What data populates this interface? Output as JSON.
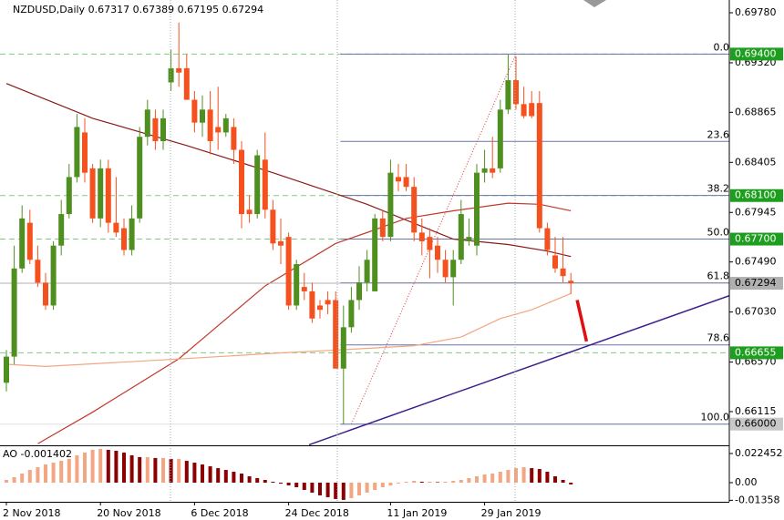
{
  "chart_data": {
    "type": "candlestick",
    "symbol": "NZDUSD,Daily",
    "categories": [
      "2 Nov 2018",
      null,
      null,
      null,
      null,
      null,
      null,
      null,
      null,
      null,
      null,
      null,
      "20 Nov 2018",
      null,
      null,
      null,
      null,
      null,
      null,
      null,
      null,
      null,
      null,
      null,
      "6 Dec 2018",
      null,
      null,
      null,
      null,
      null,
      null,
      null,
      null,
      null,
      null,
      null,
      "24 Dec 2018",
      null,
      null,
      null,
      null,
      null,
      null,
      null,
      null,
      null,
      null,
      null,
      null,
      "11 Jan 2019",
      null,
      null,
      null,
      null,
      null,
      null,
      null,
      null,
      null,
      null,
      null,
      "29 Jan 2019",
      null,
      null,
      null,
      null,
      null,
      null,
      null,
      null,
      null,
      null,
      null
    ],
    "open": [
      0.6638,
      0.6662,
      0.6743,
      0.6785,
      0.6751,
      0.673,
      0.6709,
      0.6764,
      0.6793,
      0.6827,
      0.6868,
      0.6835,
      0.6789,
      0.6835,
      0.6785,
      0.678,
      0.676,
      0.6789,
      0.6864,
      0.6881,
      0.686,
      0.6914,
      0.6927,
      0.6927,
      0.6898,
      0.6877,
      0.6889,
      0.6873,
      0.6868,
      0.6873,
      0.6852,
      0.6797,
      0.6793,
      0.6843,
      0.6797,
      0.6768,
      0.6772,
      0.6709,
      0.6726,
      0.6722,
      0.6709,
      0.6714,
      0.6714,
      0.6651,
      0.6689,
      0.6714,
      0.673,
      0.6722,
      0.6789,
      0.6772,
      0.6827,
      0.6827,
      0.6818,
      0.6776,
      0.6772,
      0.6764,
      0.6751,
      0.6735,
      0.6751,
      0.6768,
      0.6764,
      0.6831,
      0.6835,
      0.6835,
      0.6889,
      0.6916,
      0.6894,
      0.6895,
      0.6895,
      0.678,
      0.6755,
      0.6743,
      0.67317
    ],
    "high": [
      0.6668,
      0.6764,
      0.6801,
      0.6797,
      0.6764,
      0.6739,
      0.6768,
      0.6806,
      0.6839,
      0.6885,
      0.6881,
      0.6839,
      0.6843,
      0.6843,
      0.6827,
      0.6789,
      0.6801,
      0.6873,
      0.6898,
      0.6889,
      0.6889,
      0.6944,
      0.6969,
      0.694,
      0.6906,
      0.6902,
      0.6906,
      0.691,
      0.6885,
      0.6881,
      0.686,
      0.681,
      0.6852,
      0.6868,
      0.6806,
      0.6789,
      0.6776,
      0.6751,
      0.6739,
      0.673,
      0.6714,
      0.6722,
      0.6722,
      0.6709,
      0.6726,
      0.6745,
      0.676,
      0.6793,
      0.6797,
      0.6843,
      0.6839,
      0.6839,
      0.6827,
      0.6789,
      0.678,
      0.6772,
      0.676,
      0.676,
      0.6806,
      0.6789,
      0.6839,
      0.6852,
      0.6864,
      0.6898,
      0.694,
      0.6938,
      0.691,
      0.6906,
      0.6906,
      0.6785,
      0.6772,
      0.6772,
      0.67389
    ],
    "low": [
      0.663,
      0.6655,
      0.6739,
      0.6747,
      0.6726,
      0.6705,
      0.6705,
      0.6755,
      0.6789,
      0.6822,
      0.6822,
      0.6785,
      0.6781,
      0.6776,
      0.6772,
      0.6755,
      0.6755,
      0.6785,
      0.6856,
      0.6852,
      0.6852,
      0.6906,
      0.691,
      0.6898,
      0.6868,
      0.6864,
      0.6848,
      0.6852,
      0.6864,
      0.6839,
      0.678,
      0.6785,
      0.6789,
      0.6789,
      0.676,
      0.6747,
      0.6705,
      0.6705,
      0.6714,
      0.6693,
      0.6697,
      0.6701,
      0.6651,
      0.66,
      0.6684,
      0.6705,
      0.6722,
      0.6722,
      0.6768,
      0.6768,
      0.6814,
      0.6814,
      0.6768,
      0.6755,
      0.6734,
      0.6739,
      0.673,
      0.6709,
      0.6747,
      0.6764,
      0.6755,
      0.6822,
      0.6826,
      0.6831,
      0.6885,
      0.6889,
      0.6881,
      0.6881,
      0.6776,
      0.6755,
      0.6739,
      0.673,
      0.67195
    ],
    "close": [
      0.6662,
      0.6743,
      0.6789,
      0.6751,
      0.673,
      0.6709,
      0.6764,
      0.6793,
      0.6827,
      0.6873,
      0.6831,
      0.6789,
      0.6835,
      0.6785,
      0.6776,
      0.676,
      0.6789,
      0.6864,
      0.6889,
      0.686,
      0.6881,
      0.6927,
      0.6923,
      0.6898,
      0.6877,
      0.6889,
      0.686,
      0.6868,
      0.6881,
      0.6852,
      0.6793,
      0.6793,
      0.6847,
      0.6797,
      0.6766,
      0.6764,
      0.6709,
      0.6747,
      0.6722,
      0.6697,
      0.6705,
      0.671,
      0.6651,
      0.6689,
      0.6714,
      0.673,
      0.6751,
      0.6789,
      0.6772,
      0.6831,
      0.6823,
      0.6818,
      0.6776,
      0.6768,
      0.676,
      0.6751,
      0.6735,
      0.6751,
      0.6793,
      0.6772,
      0.6831,
      0.6835,
      0.6831,
      0.6889,
      0.6916,
      0.6894,
      0.6883,
      0.6883,
      0.678,
      0.676,
      0.6743,
      0.6736,
      0.67294
    ],
    "up_color": "#4f8f1f",
    "down_color": "#f4511e",
    "ylim": [
      0.65805,
      0.69897
    ],
    "yticks": [
      {
        "value": 0.6978,
        "label": "0.69780"
      },
      {
        "value": 0.6932,
        "label": "0.69320"
      },
      0.68865,
      0.68405,
      0.67945,
      {
        "value": 0.6749,
        "label": "0.67490"
      },
      {
        "value": 0.6703,
        "label": "0.67030"
      },
      {
        "value": 0.6657,
        "label": "0.66570"
      },
      0.66115
    ],
    "overlays": [
      {
        "color": "#8b1a1a",
        "x": [
          0,
          11,
          23,
          34,
          46,
          57,
          64,
          69,
          72
        ],
        "values": [
          0.6913,
          0.6881,
          0.6856,
          0.6831,
          0.6802,
          0.677,
          0.6765,
          0.6759,
          0.6754
        ]
      },
      {
        "color": "#c0392b",
        "x": [
          4,
          11,
          22,
          33,
          42,
          46,
          51,
          57,
          64,
          68,
          72
        ],
        "values": [
          0.6582,
          0.6611,
          0.666,
          0.6727,
          0.6766,
          0.6776,
          0.6789,
          0.6796,
          0.6803,
          0.6802,
          0.6796
        ]
      },
      {
        "color": "#f4a582",
        "x": [
          0,
          5,
          20,
          34,
          42,
          52,
          58,
          63,
          67,
          72
        ],
        "values": [
          0.6655,
          0.6653,
          0.6659,
          0.6665,
          0.6668,
          0.6672,
          0.668,
          0.6697,
          0.6705,
          0.672
        ]
      }
    ],
    "trendline": {
      "color": "#3c1e8c",
      "x": [
        38.6,
        92.2
      ],
      "values": [
        0.6581,
        0.6718
      ]
    },
    "forecast": {
      "color": "#e01010",
      "x": [
        72.8,
        74
      ],
      "values": [
        0.6714,
        0.6676
      ]
    },
    "fibonacci": {
      "color": "#6a74a8",
      "line_color": "#e03030",
      "x": [
        44,
        65
      ],
      "values": [
        0.66,
        0.694
      ],
      "levels": [
        {
          "value": 0,
          "label": "0.0"
        },
        23.6,
        38.2,
        {
          "value": 50,
          "label": "50.0"
        },
        61.8,
        78.6,
        {
          "value": 100,
          "label": "100.0"
        }
      ]
    },
    "price_labels": [
      {
        "value": 0.694,
        "label": "0.69400",
        "color": "#1e9e1e",
        "text_color": "#ffffff",
        "dashed": true
      },
      {
        "value": 0.681,
        "label": "0.68100",
        "color": "#1e9e1e",
        "text_color": "#ffffff",
        "dashed": true
      },
      {
        "value": 0.677,
        "label": "0.67700",
        "color": "#1e9e1e",
        "text_color": "#ffffff",
        "dashed": true
      },
      {
        "value": 0.66655,
        "label": "0.66655",
        "color": "#1e9e1e",
        "text_color": "#ffffff",
        "dashed": true
      },
      {
        "value": 0.66,
        "label": "0.66000",
        "color": "#c8c8c8",
        "text_color": "#000000",
        "dashed": false
      }
    ],
    "current_color": "#b0b0b0",
    "indicator": {
      "name": "AO",
      "up_color": "#f4a582",
      "down_color": "#8b0000",
      "values": [
        0.0021,
        0.0042,
        0.007,
        0.0098,
        0.0119,
        0.014,
        0.0154,
        0.0168,
        0.0183,
        0.0211,
        0.0232,
        0.0253,
        0.026,
        0.0253,
        0.0246,
        0.0232,
        0.0211,
        0.0197,
        0.0197,
        0.019,
        0.019,
        0.0183,
        0.0183,
        0.0168,
        0.0154,
        0.014,
        0.0126,
        0.0112,
        0.0098,
        0.0084,
        0.007,
        0.0049,
        0.0035,
        0.0021,
        0.0007,
        -0.0007,
        -0.0021,
        -0.0035,
        -0.0056,
        -0.0077,
        -0.0098,
        -0.0112,
        -0.0126,
        -0.0133,
        -0.0119,
        -0.0098,
        -0.0077,
        -0.0056,
        -0.0035,
        -0.0021,
        -0.0007,
        0.0007,
        0.0014,
        0.0007,
        0.0007,
        0.0004,
        0.0007,
        0.0014,
        0.0021,
        0.0035,
        0.0049,
        0.0063,
        0.007,
        0.0084,
        0.0098,
        0.0112,
        0.0119,
        0.0112,
        0.0105,
        0.0084,
        0.0049,
        0.0021,
        -0.001402
      ],
      "ylim": [
        -0.01474,
        0.02807
      ],
      "yticks": [
        0.022452,
        {
          "value": 0,
          "label": "0.00"
        },
        -0.01358
      ]
    }
  }
}
